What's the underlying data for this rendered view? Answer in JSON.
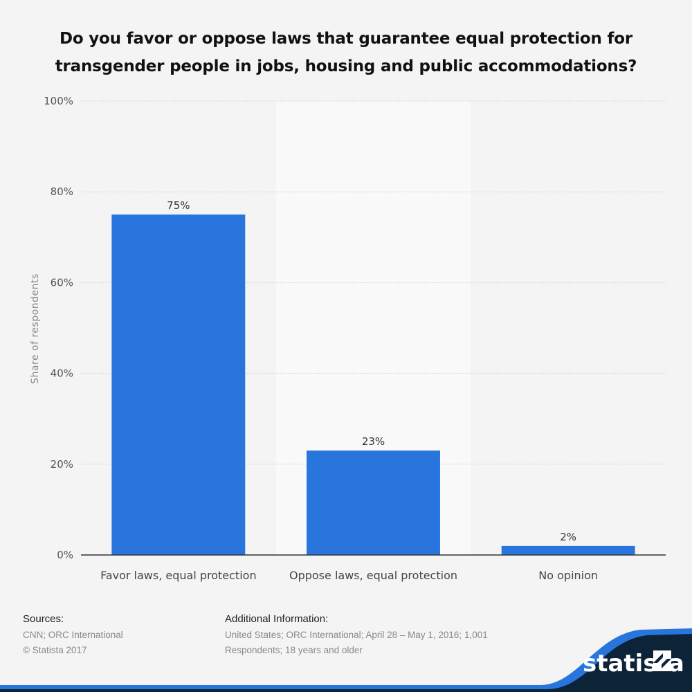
{
  "title": "Do you favor or oppose laws that guarantee equal protection for transgender people in jobs, housing and public accommodations?",
  "chart_data": {
    "type": "bar",
    "categories": [
      "Favor laws, equal protection",
      "Oppose laws, equal protection",
      "No opinion"
    ],
    "values": [
      75,
      23,
      2
    ],
    "value_labels": [
      "75%",
      "23%",
      "2%"
    ],
    "ylabel": "Share of respondents",
    "ylim": [
      0,
      100
    ],
    "yticks": [
      0,
      20,
      40,
      60,
      80,
      100
    ],
    "ytick_labels": [
      "0%",
      "20%",
      "40%",
      "60%",
      "80%",
      "100%"
    ],
    "grid": true,
    "bar_color": "#2876dd"
  },
  "footer": {
    "sources_heading": "Sources:",
    "sources_line1": "CNN; ORC International",
    "sources_line2": "© Statista 2017",
    "info_heading": "Additional Information:",
    "info_line1": "United States; ORC International; April 28 – May 1, 2016; 1,001",
    "info_line2": "Respondents; 18 years and older"
  },
  "brand": {
    "name": "statista",
    "dark_color": "#0d2338",
    "accent_color": "#2876dd"
  }
}
